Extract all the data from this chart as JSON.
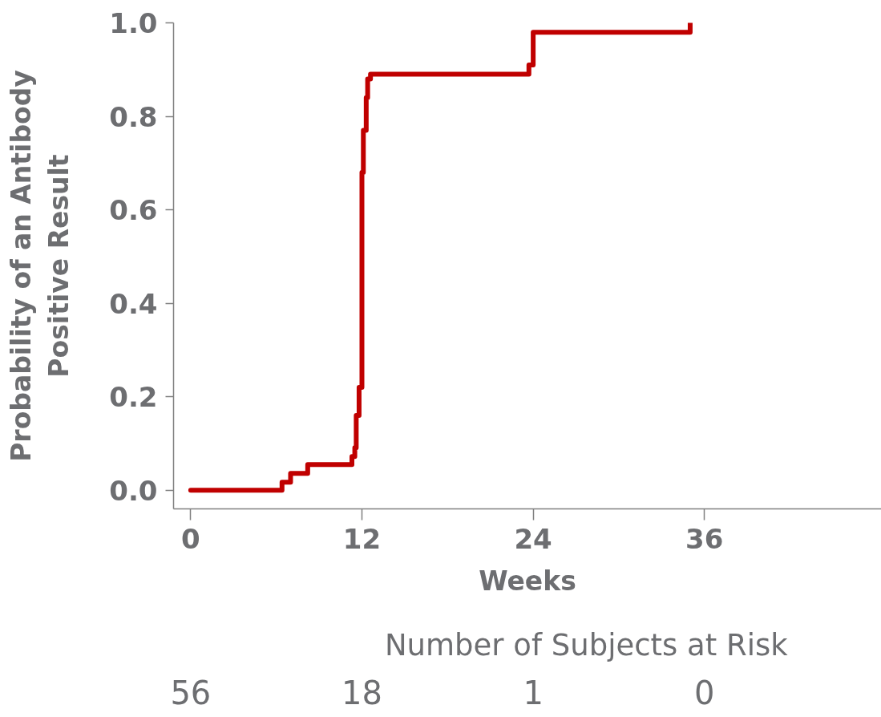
{
  "chart_data": {
    "type": "step",
    "xlabel": "Weeks",
    "ylabel": "Probability of an Antibody\nPositive Result",
    "series": [
      {
        "color": "#c00000",
        "x": [
          0,
          6.4,
          7.0,
          8.2,
          11.3,
          11.5,
          11.6,
          11.8,
          12.0,
          12.1,
          12.3,
          12.4,
          12.6,
          23.7,
          24.0,
          35.0
        ],
        "values": [
          0,
          0.017,
          0.036,
          0.055,
          0.072,
          0.091,
          0.16,
          0.22,
          0.68,
          0.77,
          0.84,
          0.88,
          0.89,
          0.91,
          0.98,
          1.0
        ]
      }
    ],
    "xlim": [
      -1.2,
      48.4
    ],
    "xticks": [
      0,
      12,
      24,
      36
    ],
    "ylim": [
      -0.04,
      1.0
    ],
    "yticks": [
      {
        "value": 0,
        "label": "0.0"
      },
      0.2,
      0.4,
      0.6,
      0.8,
      {
        "value": 1,
        "label": "1.0"
      }
    ],
    "grid": false,
    "annotations": [
      "Number of Subjects at Risk",
      "56",
      "18",
      "1",
      "0"
    ]
  }
}
